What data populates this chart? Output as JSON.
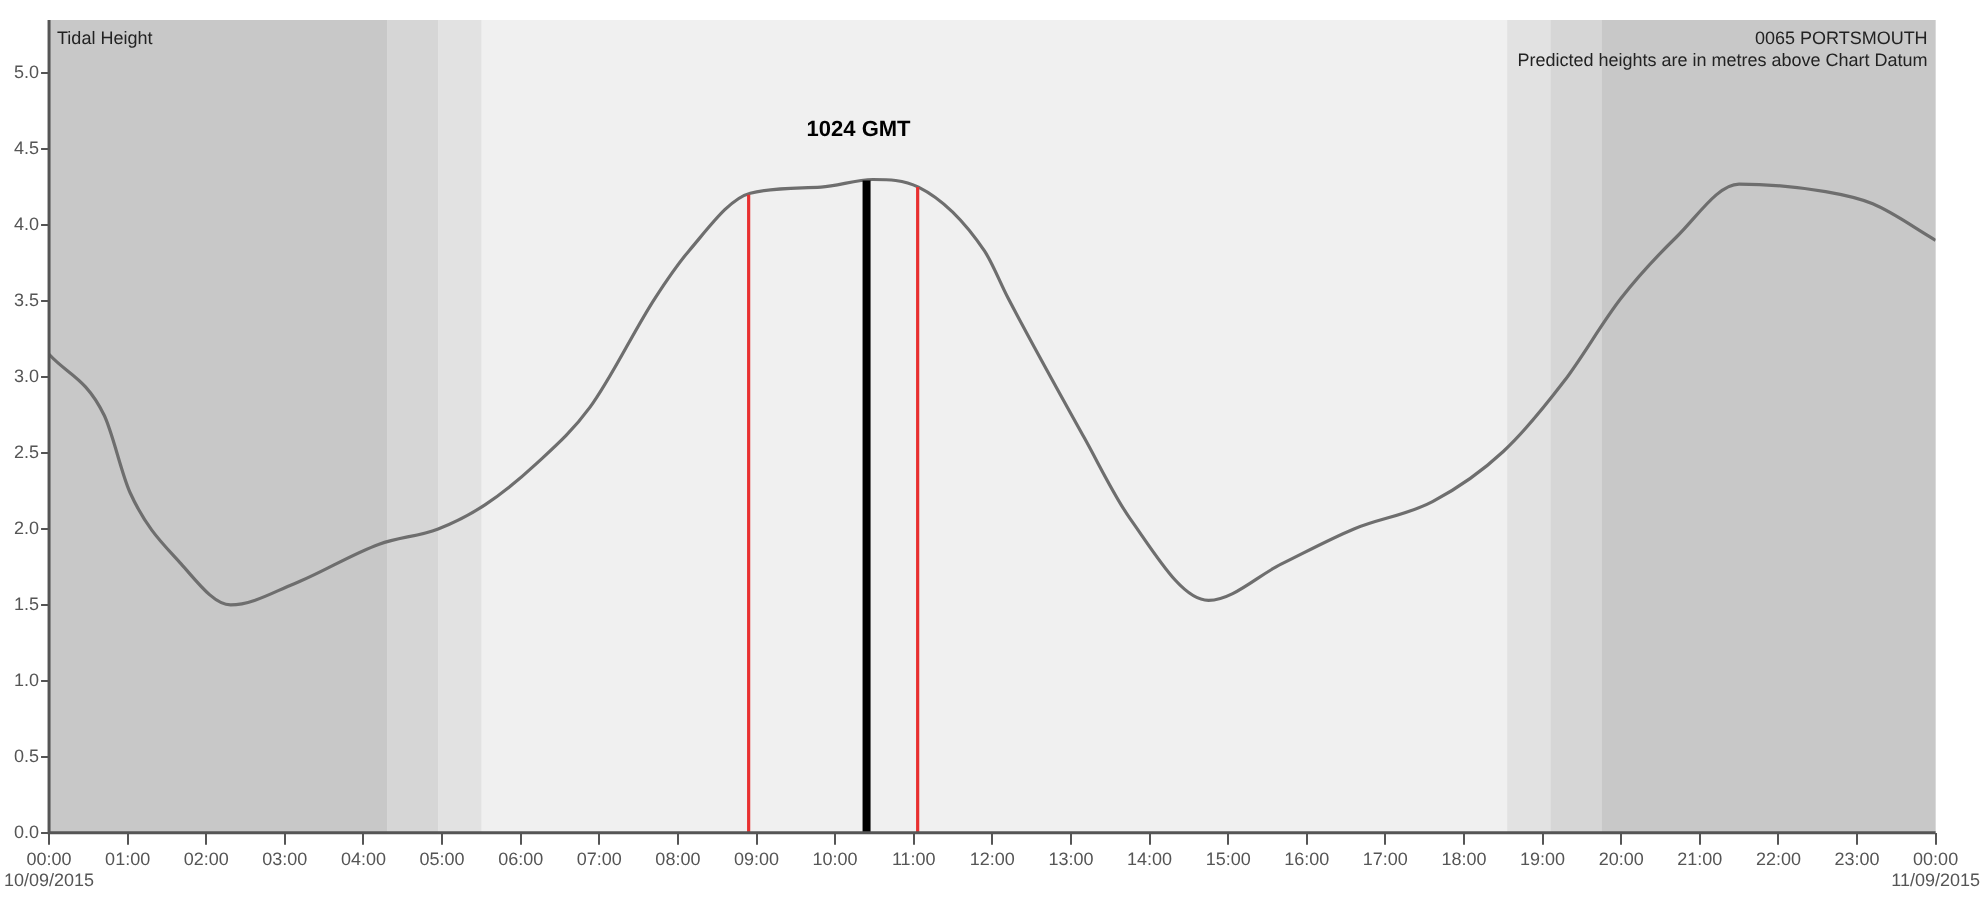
{
  "chart_data": {
    "type": "line",
    "annotations": [
      "Tidal Height",
      "0065 PORTSMOUTH",
      "Predicted heights are in metres above Chart Datum"
    ],
    "x": [
      0,
      0.7,
      1.03,
      1.68,
      2.31,
      3.12,
      4.2,
      4.95,
      5.55,
      6.2,
      6.88,
      7.71,
      8.14,
      8.92,
      9.82,
      10.48,
      11.06,
      11.9,
      12.2,
      13.17,
      13.75,
      14.75,
      15.68,
      16.6,
      17.6,
      18.5,
      19.27,
      20.0,
      20.7,
      21.5,
      22.6,
      23.2,
      24
    ],
    "series": [
      {
        "color": "#6e6e6e",
        "values": [
          3.15,
          2.75,
          2.24,
          1.77,
          1.5,
          1.64,
          1.9,
          2.0,
          2.16,
          2.43,
          2.8,
          3.52,
          3.83,
          4.21,
          4.25,
          4.3,
          4.25,
          3.83,
          3.52,
          2.6,
          2.07,
          1.53,
          1.77,
          2.0,
          2.18,
          2.51,
          2.97,
          3.52,
          3.92,
          4.27,
          4.22,
          4.14,
          3.9
        ]
      }
    ],
    "xlim": [
      0,
      24
    ],
    "xticks": [
      {
        "value": 0,
        "label": "00:00\n10/09/2015"
      },
      {
        "value": 1,
        "label": "01:00"
      },
      {
        "value": 2,
        "label": "02:00"
      },
      {
        "value": 3,
        "label": "03:00"
      },
      {
        "value": 4,
        "label": "04:00"
      },
      {
        "value": 5,
        "label": "05:00"
      },
      {
        "value": 6,
        "label": "06:00"
      },
      {
        "value": 7,
        "label": "07:00"
      },
      {
        "value": 8,
        "label": "08:00"
      },
      {
        "value": 9,
        "label": "09:00"
      },
      {
        "value": 10,
        "label": "10:00"
      },
      {
        "value": 11,
        "label": "11:00"
      },
      {
        "value": 12,
        "label": "12:00"
      },
      {
        "value": 13,
        "label": "13:00"
      },
      {
        "value": 14,
        "label": "14:00"
      },
      {
        "value": 15,
        "label": "15:00"
      },
      {
        "value": 16,
        "label": "16:00"
      },
      {
        "value": 17,
        "label": "17:00"
      },
      {
        "value": 18,
        "label": "18:00"
      },
      {
        "value": 19,
        "label": "19:00"
      },
      {
        "value": 20,
        "label": "20:00"
      },
      {
        "value": 21,
        "label": "21:00"
      },
      {
        "value": 22,
        "label": "22:00"
      },
      {
        "value": 23,
        "label": "23:00"
      },
      {
        "value": 24,
        "label": "00:00\n11/09/2015"
      }
    ],
    "ylim": [
      0,
      5.35
    ],
    "yticks": [
      {
        "value": 0,
        "label": "0.0"
      },
      {
        "value": 0.5,
        "label": "0.5"
      },
      {
        "value": 1,
        "label": "1.0"
      },
      {
        "value": 1.5,
        "label": "1.5"
      },
      {
        "value": 2,
        "label": "2.0"
      },
      {
        "value": 2.5,
        "label": "2.5"
      },
      {
        "value": 3,
        "label": "3.0"
      },
      {
        "value": 3.5,
        "label": "3.5"
      },
      {
        "value": 4,
        "label": "4.0"
      },
      {
        "value": 4.5,
        "label": "4.5"
      },
      {
        "value": 5,
        "label": "5.0"
      }
    ],
    "bands": [
      {
        "axis": "x",
        "from": 0,
        "to": 4.3,
        "color": "#c8c8c8"
      },
      {
        "axis": "x",
        "from": 4.3,
        "to": 4.95,
        "color": "#d6d6d6"
      },
      {
        "axis": "x",
        "from": 4.95,
        "to": 5.5,
        "color": "#e2e2e2"
      },
      {
        "axis": "x",
        "from": 18.55,
        "to": 19.1,
        "color": "#e2e2e2"
      },
      {
        "axis": "x",
        "from": 19.1,
        "to": 19.75,
        "color": "#d6d6d6"
      },
      {
        "axis": "x",
        "from": 19.75,
        "to": 24,
        "color": "#c8c8c8"
      }
    ],
    "ref_lines": [
      {
        "axis": "x",
        "value": 8.9,
        "color": "#e83030"
      },
      {
        "axis": "x",
        "value": 10.4,
        "label": "1024 GMT",
        "color": "#000000"
      },
      {
        "axis": "x",
        "value": 11.05,
        "color": "#e83030"
      }
    ],
    "marker": "none",
    "line_style": "solid",
    "legend": false,
    "grid": false
  }
}
